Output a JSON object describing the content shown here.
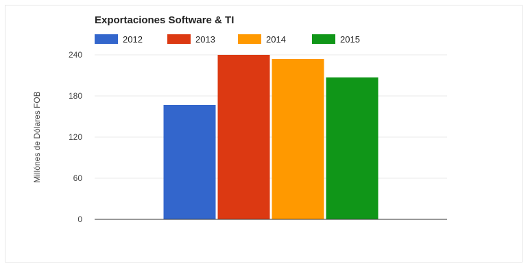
{
  "chart_data": {
    "type": "bar",
    "title": "Exportaciones Software & TI",
    "ylabel": "Millónes de Dólares FOB",
    "xlabel": "",
    "categories": [
      ""
    ],
    "series": [
      {
        "name": "2012",
        "values": [
          167
        ],
        "color": "#3366cc"
      },
      {
        "name": "2013",
        "values": [
          240
        ],
        "color": "#dc3912"
      },
      {
        "name": "2014",
        "values": [
          234
        ],
        "color": "#ff9900"
      },
      {
        "name": "2015",
        "values": [
          207
        ],
        "color": "#109618"
      }
    ],
    "ylim": [
      0,
      240
    ],
    "yticks": [
      "0",
      "60",
      "120",
      "180",
      "240"
    ],
    "grid": true,
    "legend_position": "top"
  }
}
